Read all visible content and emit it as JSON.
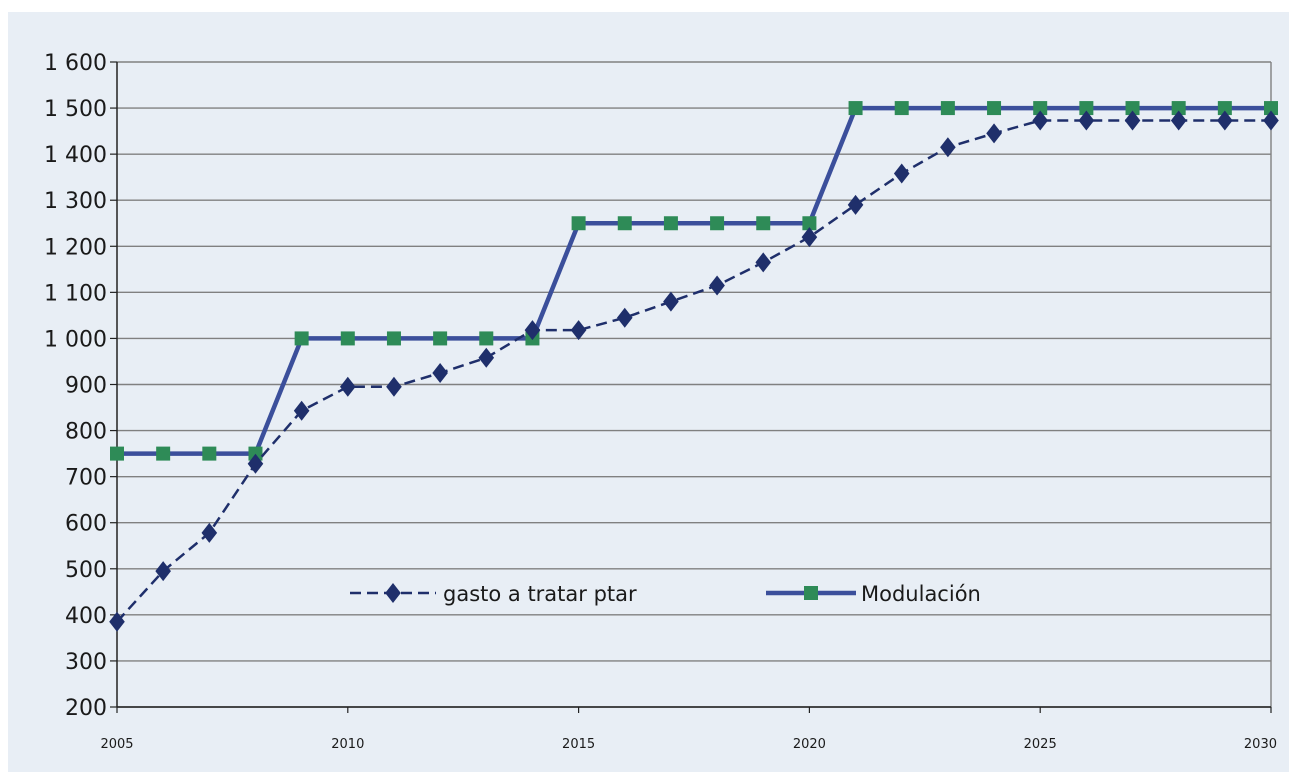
{
  "chart_data": {
    "type": "line",
    "ylim": [
      200,
      1600
    ],
    "xlim": [
      2005,
      2030
    ],
    "yticks": [
      "1 600",
      "1 500",
      "1 400",
      "1 300",
      "1 200",
      "1 100",
      "1 000",
      "900",
      "800",
      "700",
      "600",
      "500",
      "400",
      "300",
      "200"
    ],
    "ytick_values": [
      1600,
      1500,
      1400,
      1300,
      1200,
      1100,
      1000,
      900,
      800,
      700,
      600,
      500,
      400,
      300,
      200
    ],
    "xticks": [
      "2005",
      "2010",
      "2015",
      "2020",
      "2025",
      "2030"
    ],
    "xtick_values": [
      2005,
      2010,
      2015,
      2020,
      2025,
      2030
    ],
    "grid": true,
    "legend_position": "lower-center",
    "x": [
      2005,
      2006,
      2007,
      2008,
      2009,
      2010,
      2011,
      2012,
      2013,
      2014,
      2015,
      2016,
      2017,
      2018,
      2019,
      2020,
      2021,
      2022,
      2023,
      2024,
      2025,
      2026,
      2027,
      2028,
      2029,
      2030
    ],
    "series": [
      {
        "name": "gasto a tratar ptar",
        "color": "#1f2f6b",
        "marker": "diamond",
        "dash": true,
        "values": [
          385,
          495,
          578,
          728,
          843,
          895,
          895,
          925,
          958,
          1018,
          1018,
          1045,
          1080,
          1115,
          1165,
          1220,
          1290,
          1358,
          1415,
          1445,
          1473,
          1473,
          1473,
          1473,
          1473,
          1473
        ]
      },
      {
        "name": "Modulación",
        "color": "#3b4f9b",
        "marker": "square",
        "marker_color": "#2e8b57",
        "dash": false,
        "values": [
          750,
          750,
          750,
          750,
          1000,
          1000,
          1000,
          1000,
          1000,
          1000,
          1250,
          1250,
          1250,
          1250,
          1250,
          1250,
          1500,
          1500,
          1500,
          1500,
          1500,
          1500,
          1500,
          1500,
          1500,
          1500
        ]
      }
    ]
  }
}
